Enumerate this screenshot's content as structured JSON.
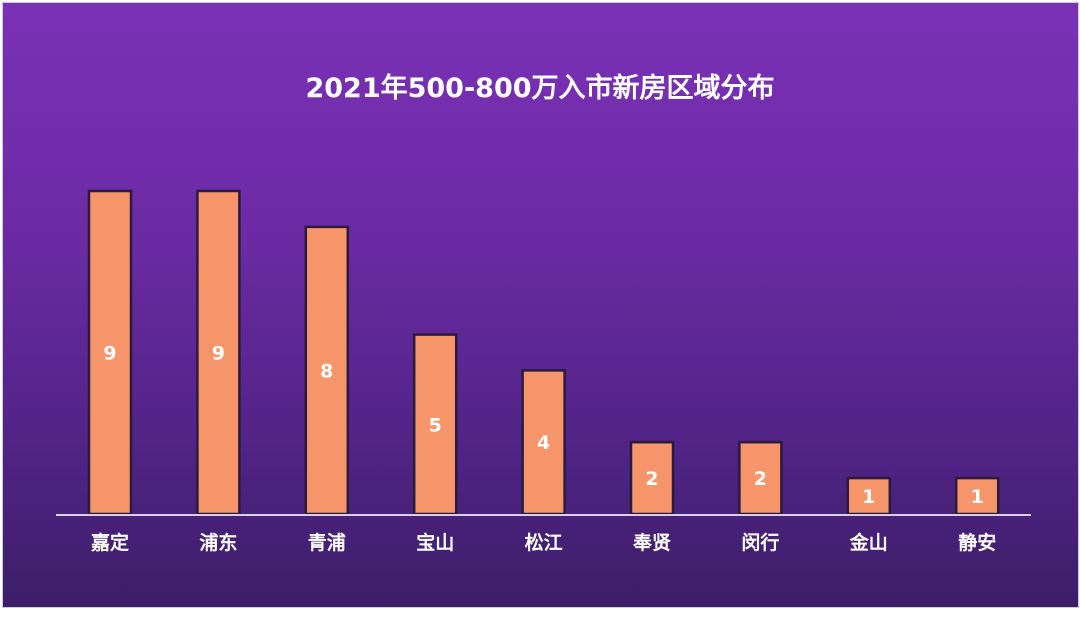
{
  "chart_data": {
    "type": "bar",
    "title": "2021年500-800万入市新房区域分布",
    "xlabel": "",
    "ylabel": "",
    "categories": [
      "嘉定",
      "浦东",
      "青浦",
      "宝山",
      "松江",
      "奉贤",
      "闵行",
      "金山",
      "静安"
    ],
    "values": [
      9,
      9,
      8,
      5,
      4,
      2,
      2,
      1,
      1
    ],
    "ylim": [
      0,
      9
    ],
    "grid": false,
    "legend": "none",
    "data_labels": "inside-center",
    "colors": {
      "bar_fill": "#f7956a",
      "bar_stroke": "#2a1b3d",
      "axis_line": "#d9cfe8",
      "text": "#ffffff",
      "background_top": "#7b31b6",
      "background_bottom": "#3d1e68"
    }
  }
}
